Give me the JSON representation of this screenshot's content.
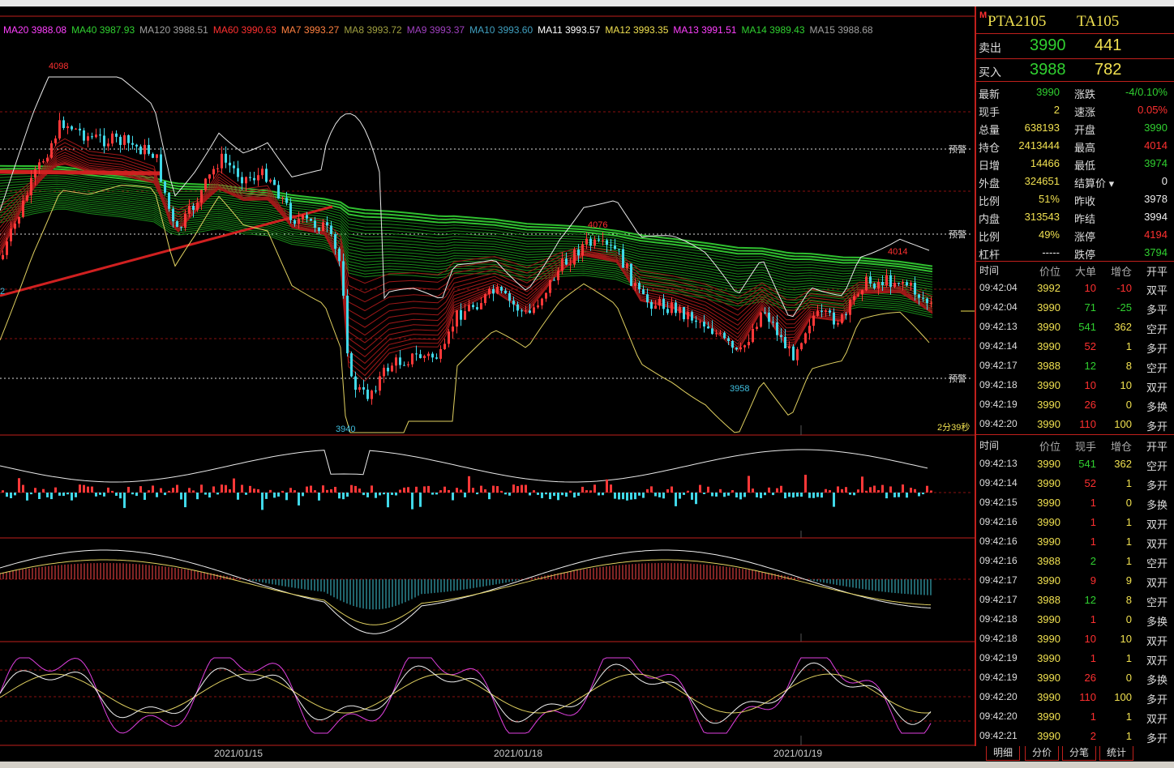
{
  "ma_legend": [
    {
      "label": "MA20",
      "value": "3988.08",
      "color": "#ff40ff"
    },
    {
      "label": "MA40",
      "value": "3987.93",
      "color": "#30d030"
    },
    {
      "label": "MA120",
      "value": "3988.51",
      "color": "#a0a0a0"
    },
    {
      "label": "MA60",
      "value": "3990.63",
      "color": "#ff3030"
    },
    {
      "label": "MA7",
      "value": "3993.27",
      "color": "#ff8040"
    },
    {
      "label": "MA8",
      "value": "3993.72",
      "color": "#a0a040"
    },
    {
      "label": "MA9",
      "value": "3993.37",
      "color": "#a040c0"
    },
    {
      "label": "MA10",
      "value": "3993.60",
      "color": "#40a0c0"
    },
    {
      "label": "MA11",
      "value": "3993.57",
      "color": "#ffffff"
    },
    {
      "label": "MA12",
      "value": "3993.35",
      "color": "#f0e050"
    },
    {
      "label": "MA13",
      "value": "3991.51",
      "color": "#ff40ff"
    },
    {
      "label": "MA14",
      "value": "3989.43",
      "color": "#30d030"
    },
    {
      "label": "MA15",
      "value": "3988.68",
      "color": "#a0a0a0"
    }
  ],
  "chart_labels": {
    "high_4098": "4098",
    "low_3940": "3940",
    "peak_4076": "4076",
    "low_3958": "3958",
    "high_4014": "4014",
    "left_edge_2": "2",
    "alert1": "预警",
    "alert2": "预警",
    "alert3": "预警",
    "countdown": "2分39秒"
  },
  "dates": [
    "2021/01/15",
    "2021/01/18",
    "2021/01/19"
  ],
  "quote": {
    "flag": "M",
    "contract": "PTA2105",
    "code": "TA105",
    "ask_label": "卖出",
    "ask_price": "3990",
    "ask_vol": "441",
    "bid_label": "买入",
    "bid_price": "3988",
    "bid_vol": "782"
  },
  "stats": [
    {
      "l1": "最新",
      "v1": "3990",
      "c1": "g",
      "l2": "涨跌",
      "v2": "-4/0.10%",
      "c2": "g"
    },
    {
      "l1": "现手",
      "v1": "2",
      "c1": "y",
      "l2": "速涨",
      "v2": "0.05%",
      "c2": "r"
    },
    {
      "l1": "总量",
      "v1": "638193",
      "c1": "y",
      "l2": "开盘",
      "v2": "3990",
      "c2": "g"
    },
    {
      "l1": "持仓",
      "v1": "2413444",
      "c1": "y",
      "l2": "最高",
      "v2": "4014",
      "c2": "r"
    },
    {
      "l1": "日增",
      "v1": "14466",
      "c1": "y",
      "l2": "最低",
      "v2": "3974",
      "c2": "g"
    },
    {
      "l1": "外盘",
      "v1": "324651",
      "c1": "y",
      "l2": "结算价",
      "v2": "0",
      "c2": "w"
    },
    {
      "l1": "比例",
      "v1": "51%",
      "c1": "y",
      "l2": "昨收",
      "v2": "3978",
      "c2": "w"
    },
    {
      "l1": "内盘",
      "v1": "313543",
      "c1": "y",
      "l2": "昨结",
      "v2": "3994",
      "c2": "w"
    },
    {
      "l1": "比例",
      "v1": "49%",
      "c1": "y",
      "l2": "涨停",
      "v2": "4194",
      "c2": "r"
    },
    {
      "l1": "杠杆",
      "v1": "-----",
      "c1": "w",
      "l2": "跌停",
      "v2": "3794",
      "c2": "g"
    }
  ],
  "ticks1_header": {
    "time": "时间",
    "price": "价位",
    "vol": "大单",
    "oi": "增仓",
    "type": "开平"
  },
  "ticks1": [
    {
      "time": "09:42:04",
      "price": "3992",
      "pc": "y",
      "vol": "10",
      "vc": "r",
      "oi": "-10",
      "oc": "r",
      "type": "双平"
    },
    {
      "time": "09:42:04",
      "price": "3990",
      "pc": "y",
      "vol": "71",
      "vc": "g",
      "oi": "-25",
      "oc": "g",
      "type": "多平"
    },
    {
      "time": "09:42:13",
      "price": "3990",
      "pc": "y",
      "vol": "541",
      "vc": "g",
      "oi": "362",
      "oc": "y",
      "type": "空开"
    },
    {
      "time": "09:42:14",
      "price": "3990",
      "pc": "y",
      "vol": "52",
      "vc": "r",
      "oi": "1",
      "oc": "y",
      "type": "多开"
    },
    {
      "time": "09:42:17",
      "price": "3988",
      "pc": "y",
      "vol": "12",
      "vc": "g",
      "oi": "8",
      "oc": "y",
      "type": "空开"
    },
    {
      "time": "09:42:18",
      "price": "3990",
      "pc": "y",
      "vol": "10",
      "vc": "r",
      "oi": "10",
      "oc": "y",
      "type": "双开"
    },
    {
      "time": "09:42:19",
      "price": "3990",
      "pc": "y",
      "vol": "26",
      "vc": "r",
      "oi": "0",
      "oc": "y",
      "type": "多换"
    },
    {
      "time": "09:42:20",
      "price": "3990",
      "pc": "y",
      "vol": "110",
      "vc": "r",
      "oi": "100",
      "oc": "y",
      "type": "多开"
    }
  ],
  "ticks2_header": {
    "time": "时间",
    "price": "价位",
    "vol": "现手",
    "oi": "增仓",
    "type": "开平"
  },
  "ticks2": [
    {
      "time": "09:42:13",
      "price": "3990",
      "pc": "y",
      "vol": "541",
      "vc": "g",
      "oi": "362",
      "oc": "y",
      "type": "空开"
    },
    {
      "time": "09:42:14",
      "price": "3990",
      "pc": "y",
      "vol": "52",
      "vc": "r",
      "oi": "1",
      "oc": "y",
      "type": "多开"
    },
    {
      "time": "09:42:15",
      "price": "3990",
      "pc": "y",
      "vol": "1",
      "vc": "r",
      "oi": "0",
      "oc": "y",
      "type": "多换"
    },
    {
      "time": "09:42:16",
      "price": "3990",
      "pc": "y",
      "vol": "1",
      "vc": "r",
      "oi": "1",
      "oc": "y",
      "type": "双开"
    },
    {
      "time": "09:42:16",
      "price": "3990",
      "pc": "y",
      "vol": "1",
      "vc": "r",
      "oi": "1",
      "oc": "y",
      "type": "双开"
    },
    {
      "time": "09:42:16",
      "price": "3988",
      "pc": "y",
      "vol": "2",
      "vc": "g",
      "oi": "1",
      "oc": "y",
      "type": "空开"
    },
    {
      "time": "09:42:17",
      "price": "3990",
      "pc": "y",
      "vol": "9",
      "vc": "r",
      "oi": "9",
      "oc": "y",
      "type": "双开"
    },
    {
      "time": "09:42:17",
      "price": "3988",
      "pc": "y",
      "vol": "12",
      "vc": "g",
      "oi": "8",
      "oc": "y",
      "type": "空开"
    },
    {
      "time": "09:42:18",
      "price": "3990",
      "pc": "y",
      "vol": "1",
      "vc": "r",
      "oi": "0",
      "oc": "y",
      "type": "多换"
    },
    {
      "time": "09:42:18",
      "price": "3990",
      "pc": "y",
      "vol": "10",
      "vc": "r",
      "oi": "10",
      "oc": "y",
      "type": "双开"
    },
    {
      "time": "09:42:19",
      "price": "3990",
      "pc": "y",
      "vol": "1",
      "vc": "r",
      "oi": "1",
      "oc": "y",
      "type": "双开"
    },
    {
      "time": "09:42:19",
      "price": "3990",
      "pc": "y",
      "vol": "26",
      "vc": "r",
      "oi": "0",
      "oc": "y",
      "type": "多换"
    },
    {
      "time": "09:42:20",
      "price": "3990",
      "pc": "y",
      "vol": "110",
      "vc": "r",
      "oi": "100",
      "oc": "y",
      "type": "多开"
    },
    {
      "time": "09:42:20",
      "price": "3990",
      "pc": "y",
      "vol": "1",
      "vc": "r",
      "oi": "1",
      "oc": "y",
      "type": "双开"
    },
    {
      "time": "09:42:21",
      "price": "3990",
      "pc": "y",
      "vol": "2",
      "vc": "r",
      "oi": "1",
      "oc": "y",
      "type": "多开"
    }
  ],
  "tabs": [
    "明细",
    "分价",
    "分笔",
    "统计"
  ]
}
